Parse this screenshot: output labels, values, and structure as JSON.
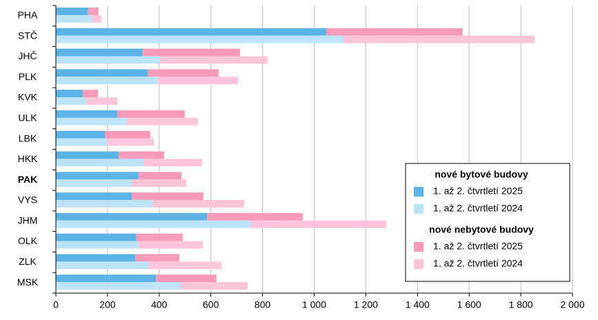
{
  "chart_data": {
    "type": "bar",
    "orientation": "horizontal",
    "categories": [
      "PHA",
      "STČ",
      "JHČ",
      "PLK",
      "KVK",
      "ULK",
      "LBK",
      "HKK",
      "PAK",
      "VYS",
      "JHM",
      "OLK",
      "ZLK",
      "MSK"
    ],
    "groups": [
      {
        "name": "nové bytové budovy",
        "series": [
          {
            "name": "1. až 2. čtvrtletí 2025",
            "color": "#5bb4e5",
            "values": [
              125,
              1047,
              336,
              355,
              104,
              238,
              190,
              243,
              320,
              294,
              585,
              310,
              307,
              387
            ]
          },
          {
            "name": "1. až 2. čtvrtletí 2024",
            "color": "#bde3f7",
            "values": [
              139,
              1111,
              403,
              395,
              117,
              275,
              198,
              339,
              294,
              374,
              753,
              320,
              358,
              483
            ]
          }
        ]
      },
      {
        "name": "nové nebytové budovy",
        "series": [
          {
            "name": "1. až 2. čtvrtletí 2025",
            "color": "#f79bbb",
            "values": [
              40,
              528,
              377,
              275,
              59,
              261,
              176,
              176,
              166,
              277,
              371,
              181,
              171,
              235
            ]
          },
          {
            "name": "1. až 2. čtvrtletí 2024",
            "color": "#fcc6da",
            "values": [
              37,
              742,
              417,
              310,
              121,
              275,
              181,
              227,
              211,
              355,
              526,
              249,
              283,
              259
            ]
          }
        ]
      }
    ],
    "xlim": [
      0,
      2000
    ],
    "xticks": [
      0,
      200,
      400,
      600,
      800,
      {
        "value": 1000,
        "label": "1 000"
      },
      {
        "value": 1200,
        "label": "1 200"
      },
      {
        "value": 1400,
        "label": "1 400"
      },
      {
        "value": 1600,
        "label": "1 600"
      },
      {
        "value": 1800,
        "label": "1 800"
      },
      {
        "value": 2000,
        "label": "2 000"
      }
    ],
    "grid": true,
    "legend_position": "lower right"
  }
}
